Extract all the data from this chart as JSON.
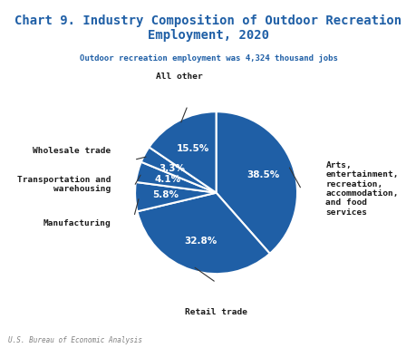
{
  "title": "Chart 9. Industry Composition of Outdoor Recreation\nEmployment, 2020",
  "subtitle": "Outdoor recreation employment was 4,324 thousand jobs",
  "footer": "U.S. Bureau of Economic Analysis",
  "slices": [
    {
      "label": "Arts,\nentertainment,\nrecreation,\naccommodation,\nand food\nservices",
      "value": 38.5,
      "pct": "38.5%"
    },
    {
      "label": "Retail trade",
      "value": 32.8,
      "pct": "32.8%"
    },
    {
      "label": "Manufacturing",
      "value": 5.8,
      "pct": "5.8%"
    },
    {
      "label": "Transportation and\nwarehousing",
      "value": 4.1,
      "pct": "4.1%"
    },
    {
      "label": "Wholesale trade",
      "value": 3.3,
      "pct": "3.3%"
    },
    {
      "label": "All other",
      "value": 15.5,
      "pct": "15.5%"
    }
  ],
  "colors": [
    "#1f5fa6",
    "#1f5fa6",
    "#1f5fa6",
    "#1f5fa6",
    "#1f5fa6",
    "#1f5fa6"
  ],
  "title_color": "#1f5fa6",
  "subtitle_color": "#1f5fa6",
  "footer_color": "#808080",
  "label_color": "#1a1a1a",
  "pct_color": "#ffffff",
  "background_color": "#ffffff"
}
